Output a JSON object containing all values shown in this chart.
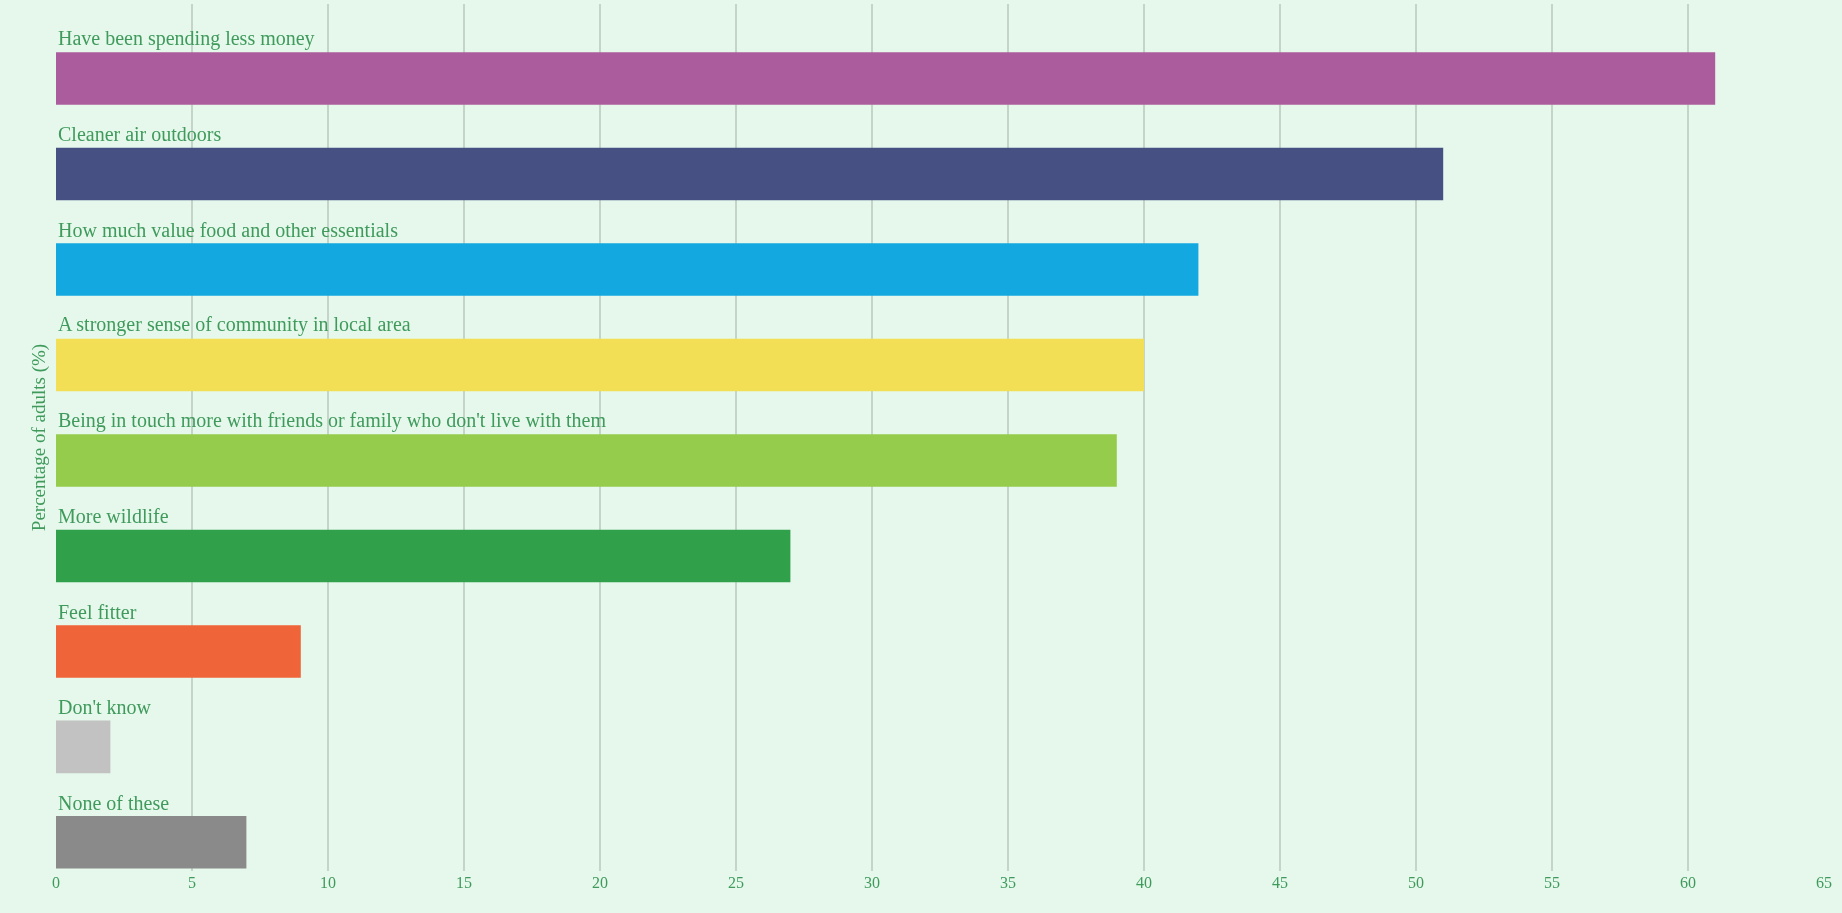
{
  "chart_data": {
    "type": "bar",
    "orientation": "horizontal",
    "ylabel": "Percentage of adults (%)",
    "categories": [
      "Have been spending less money",
      "Cleaner air outdoors",
      "How much value food and other essentials",
      "A stronger sense of community in local area",
      "Being in touch more with friends or family who don't live with them",
      "More wildlife",
      "Feel fitter",
      "Don't know",
      "None of these"
    ],
    "values": [
      61,
      51,
      42,
      40,
      39,
      27,
      9,
      2,
      7
    ],
    "colors": [
      "#ab5c9c",
      "#465083",
      "#14a8e1",
      "#f3df56",
      "#95cc4c",
      "#30a04b",
      "#ef6439",
      "#c2c2c2",
      "#8a8a8a"
    ],
    "xlim": [
      0,
      65
    ],
    "xticks": [
      0,
      5,
      10,
      15,
      20,
      25,
      30,
      35,
      40,
      45,
      50,
      55,
      60,
      65
    ],
    "grid": "x"
  }
}
